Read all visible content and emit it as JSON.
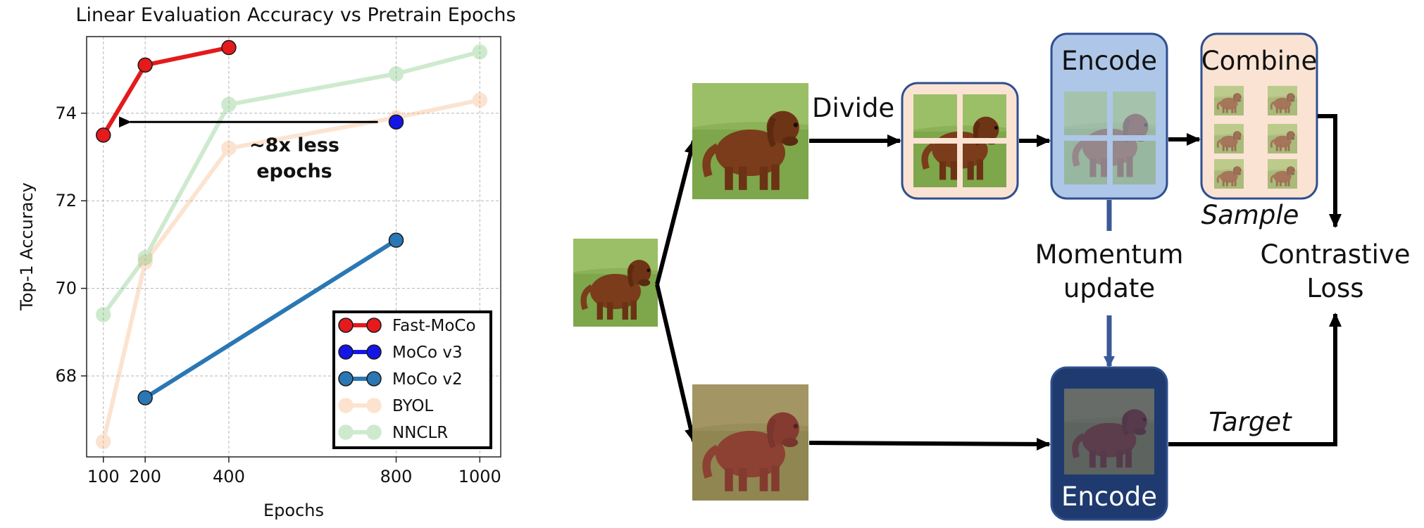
{
  "chart_data": {
    "type": "line",
    "title": "Linear Evaluation Accuracy vs Pretrain Epochs",
    "xlabel": "Epochs",
    "ylabel": "Top-1 Accuracy",
    "xticks": [
      100,
      200,
      400,
      800,
      1000
    ],
    "yticks": [
      68,
      70,
      72,
      74
    ],
    "xlim": [
      60,
      1050
    ],
    "ylim": [
      66.15,
      75.75
    ],
    "grid": true,
    "legend_position": "lower-right",
    "series": [
      {
        "name": "Fast-MoCo",
        "color": "#e41a1c",
        "alpha": 1.0,
        "x": [
          100,
          200,
          400
        ],
        "y": [
          73.5,
          75.1,
          75.5
        ]
      },
      {
        "name": "MoCo v3",
        "color": "#1515e6",
        "alpha": 1.0,
        "x": [
          800
        ],
        "y": [
          73.8
        ]
      },
      {
        "name": "MoCo v2",
        "color": "#2a77b4",
        "alpha": 1.0,
        "x": [
          200,
          800
        ],
        "y": [
          67.5,
          71.1
        ]
      },
      {
        "name": "BYOL",
        "color": "#f7b27a",
        "alpha": 0.35,
        "x": [
          100,
          200,
          400,
          800,
          1000
        ],
        "y": [
          66.5,
          70.6,
          73.2,
          73.9,
          74.3
        ]
      },
      {
        "name": "NNCLR",
        "color": "#74c476",
        "alpha": 0.35,
        "x": [
          100,
          200,
          400,
          800,
          1000
        ],
        "y": [
          69.4,
          70.7,
          74.2,
          74.9,
          75.4
        ]
      }
    ],
    "annotation": {
      "text_line1": "~8x less",
      "text_line2": "epochs",
      "arrow_from": {
        "x": 800,
        "y": 73.8
      },
      "arrow_to": {
        "x": 100,
        "y": 73.8
      }
    }
  },
  "diagram": {
    "divide_label": "Divide",
    "encode_top_label": "Encode",
    "combine_label": "Combine",
    "sample_label": "Sample",
    "momentum_line1": "Momentum",
    "momentum_line2": "update",
    "contrastive_line1": "Contrastive",
    "contrastive_line2": "Loss",
    "target_label": "Target",
    "encode_bottom_label": "Encode",
    "colors": {
      "peach_box": "#fbe3d3",
      "blue_box": "#aec6e8",
      "box_border": "#2f4f8f",
      "dark_box": "#1f3a6e",
      "grass": "#7fa54a",
      "dog": "#8a4a22"
    }
  }
}
